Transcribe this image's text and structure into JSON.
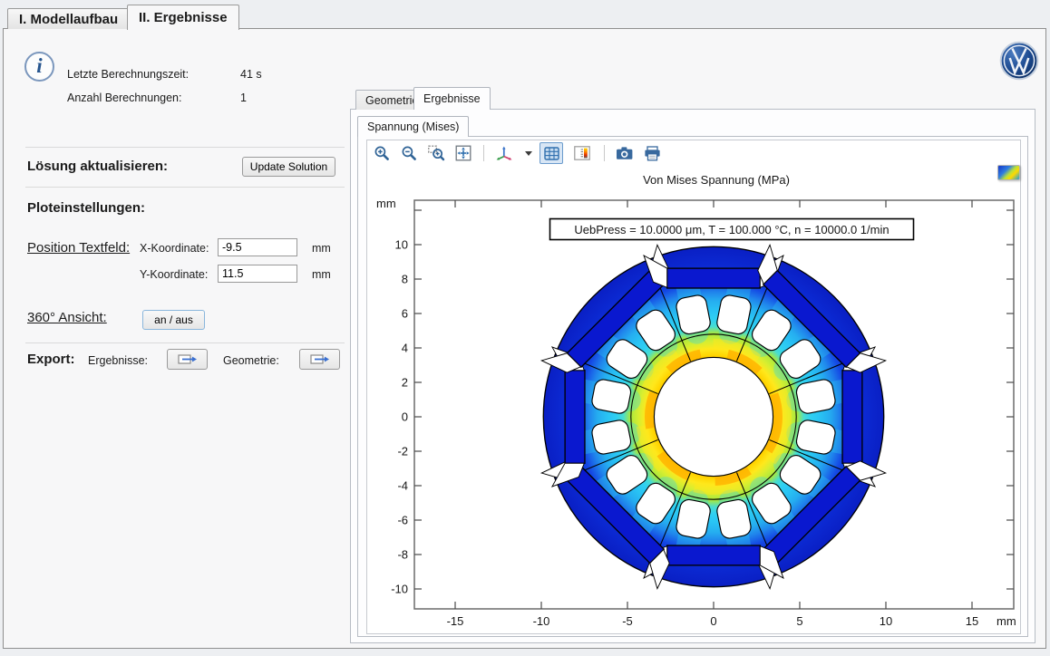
{
  "window_tabs": [
    {
      "label": "I. Modellaufbau"
    },
    {
      "label": "II. Ergebnisse"
    }
  ],
  "info": {
    "rows": [
      {
        "label": "Letzte Berechnungszeit:",
        "value": "41 s"
      },
      {
        "label": "Anzahl Berechnungen:",
        "value": "1"
      }
    ]
  },
  "solution": {
    "label": "Lösung aktualisieren:",
    "button": "Update Solution"
  },
  "plot_settings": {
    "heading": "Ploteinstellungen:",
    "position_label": "Position Textfeld:",
    "x_label": "X-Koordinate:",
    "x_value": "-9.5",
    "x_unit": "mm",
    "y_label": "Y-Koordinate:",
    "y_value": "11.5",
    "y_unit": "mm",
    "view360_label": "360° Ansicht:",
    "view360_button": "an / aus"
  },
  "export": {
    "heading": "Export:",
    "results_label": "Ergebnisse:",
    "geometry_label": "Geometrie:"
  },
  "right_panel": {
    "tabs": [
      {
        "label": "Geometrie"
      },
      {
        "label": "Ergebnisse"
      }
    ],
    "plot_tab": "Spannung (Mises)",
    "toolbar_icons": [
      "zoom-in",
      "zoom-out",
      "zoom-box",
      "zoom-extents",
      "view-3d",
      "grid",
      "color-legend",
      "snapshot",
      "print"
    ]
  },
  "chart": {
    "type": "simulation-surface-plot",
    "title": "Von Mises Spannung (MPa)",
    "annotation": "UebPress = 10.0000 μm, T = 100.000 °C, n = 10000.0  1/min",
    "axis_unit": "mm",
    "x_ticks": [
      -15,
      -10,
      -5,
      0,
      5,
      10,
      15
    ],
    "y_tick_marks": [
      12,
      10,
      8,
      6,
      4,
      2,
      0,
      -2,
      -4,
      -6,
      -8,
      -10
    ],
    "y_tick_labels": [
      10,
      8,
      6,
      4,
      2,
      0,
      -2,
      -4,
      -6,
      -8,
      -10
    ],
    "x_range_mm": [
      -17.4,
      17.4
    ],
    "y_range_mm": [
      -11.2,
      12.6
    ]
  },
  "colors": {
    "stress_low": "#0a1fc4",
    "stress_blue": "#1448e4",
    "stress_cyan": "#2fd2f2",
    "stress_green": "#a8e83e",
    "stress_yellow": "#ffe81c",
    "stress_max": "#ffb200",
    "magnet": "#0a18cf",
    "icon_blue": "#2f6396",
    "active_tab_border": "#6a9bcd"
  }
}
